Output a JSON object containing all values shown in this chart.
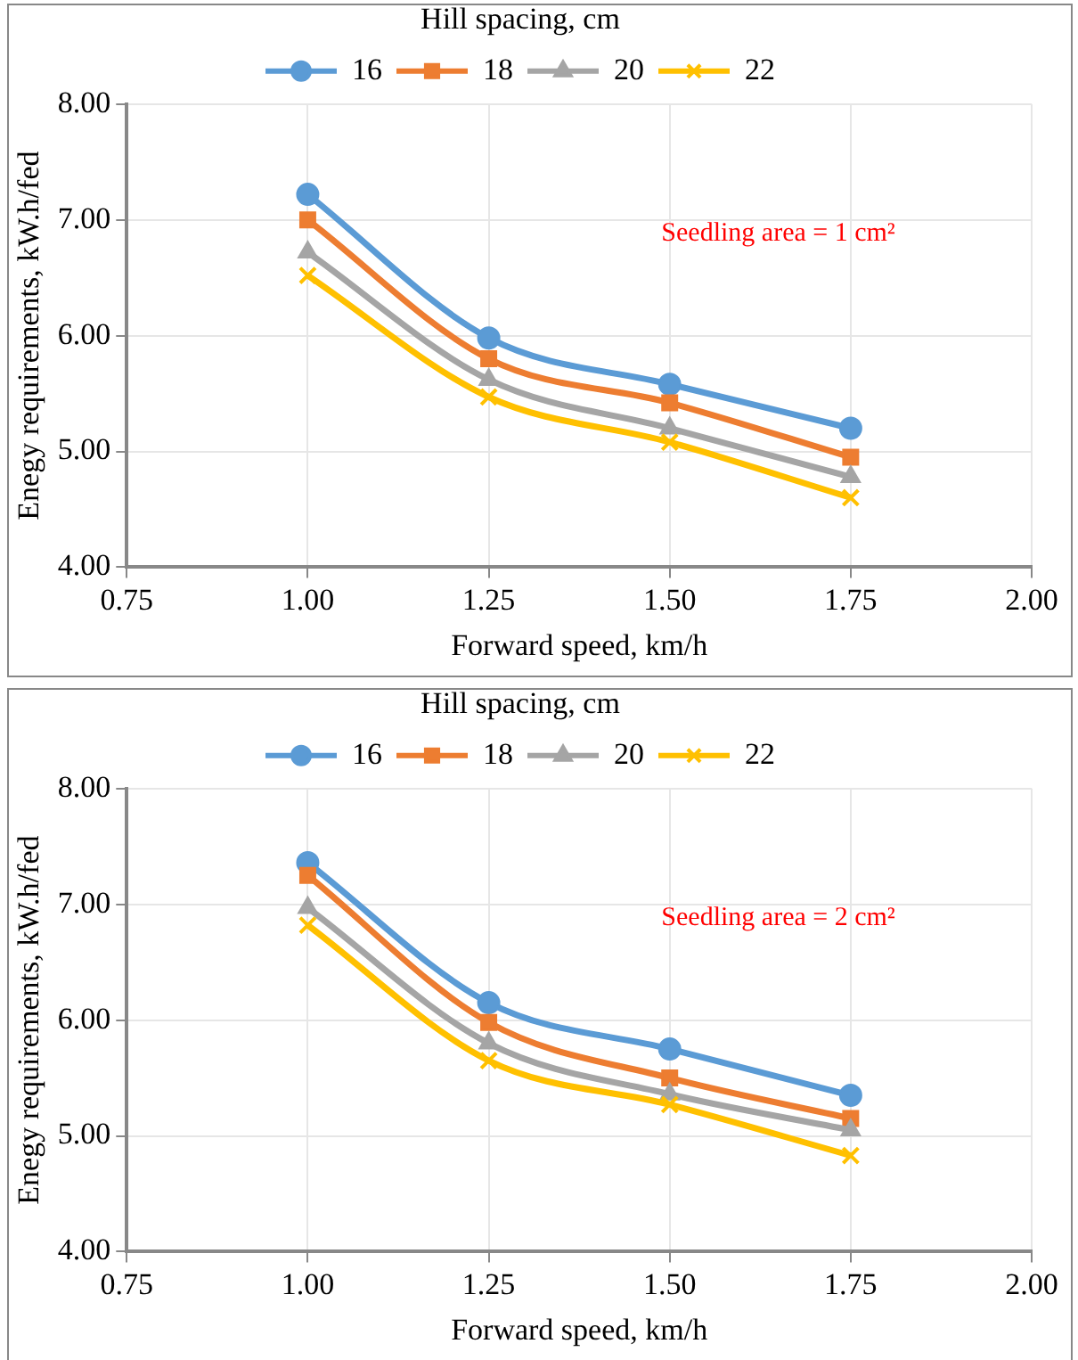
{
  "chart_data": [
    {
      "type": "line",
      "legend_title": "Hill spacing, cm",
      "xlabel": "Forward speed, km/h",
      "ylabel": "Enegy requirements, kW.h/fed",
      "annotations": [
        "Seedling area = 1 cm²"
      ],
      "x": [
        1,
        1.25,
        1.5,
        1.75
      ],
      "series": [
        {
          "name": "16",
          "color": "#5b9bd5",
          "marker": "circle",
          "values": [
            7.22,
            5.98,
            5.58,
            5.2
          ]
        },
        {
          "name": "18",
          "color": "#ed7d31",
          "marker": "square",
          "values": [
            7.0,
            5.8,
            5.42,
            4.95
          ]
        },
        {
          "name": "20",
          "color": "#a5a5a5",
          "marker": "triangle",
          "values": [
            6.72,
            5.62,
            5.2,
            4.78
          ]
        },
        {
          "name": "22",
          "color": "#ffc000",
          "marker": "cross",
          "values": [
            6.52,
            5.47,
            5.08,
            4.6
          ]
        }
      ],
      "xlim": [
        0.75,
        2
      ],
      "xticks": [
        {
          "value": 0.75,
          "label": "0.75"
        },
        {
          "value": 1,
          "label": "1.00"
        },
        {
          "value": 1.25,
          "label": "1.25"
        },
        {
          "value": 1.5,
          "label": "1.50"
        },
        {
          "value": 1.75,
          "label": "1.75"
        },
        {
          "value": 2,
          "label": "2.00"
        }
      ],
      "ylim": [
        4,
        8
      ],
      "yticks": [
        {
          "value": 4,
          "label": "4.00"
        },
        {
          "value": 5,
          "label": "5.00"
        },
        {
          "value": 6,
          "label": "6.00"
        },
        {
          "value": 7,
          "label": "7.00"
        },
        {
          "value": 8,
          "label": "8.00"
        }
      ],
      "grid": true,
      "legend": "top"
    },
    {
      "type": "line",
      "legend_title": "Hill spacing, cm",
      "xlabel": "Forward speed, km/h",
      "ylabel": "Enegy requirements, kW.h/fed",
      "annotations": [
        "Seedling area = 2 cm²"
      ],
      "x": [
        1,
        1.25,
        1.5,
        1.75
      ],
      "series": [
        {
          "name": "16",
          "color": "#5b9bd5",
          "marker": "circle",
          "values": [
            7.36,
            6.15,
            5.75,
            5.35
          ]
        },
        {
          "name": "18",
          "color": "#ed7d31",
          "marker": "square",
          "values": [
            7.25,
            5.98,
            5.5,
            5.15
          ]
        },
        {
          "name": "20",
          "color": "#a5a5a5",
          "marker": "triangle",
          "values": [
            6.97,
            5.8,
            5.36,
            5.05
          ]
        },
        {
          "name": "22",
          "color": "#ffc000",
          "marker": "cross",
          "values": [
            6.82,
            5.65,
            5.27,
            4.83
          ]
        }
      ],
      "xlim": [
        0.75,
        2
      ],
      "xticks": [
        {
          "value": 0.75,
          "label": "0.75"
        },
        {
          "value": 1,
          "label": "1.00"
        },
        {
          "value": 1.25,
          "label": "1.25"
        },
        {
          "value": 1.5,
          "label": "1.50"
        },
        {
          "value": 1.75,
          "label": "1.75"
        },
        {
          "value": 2,
          "label": "2.00"
        }
      ],
      "ylim": [
        4,
        8
      ],
      "yticks": [
        {
          "value": 4,
          "label": "4.00"
        },
        {
          "value": 5,
          "label": "5.00"
        },
        {
          "value": 6,
          "label": "6.00"
        },
        {
          "value": 7,
          "label": "7.00"
        },
        {
          "value": 8,
          "label": "8.00"
        }
      ],
      "grid": true,
      "legend": "top"
    }
  ]
}
